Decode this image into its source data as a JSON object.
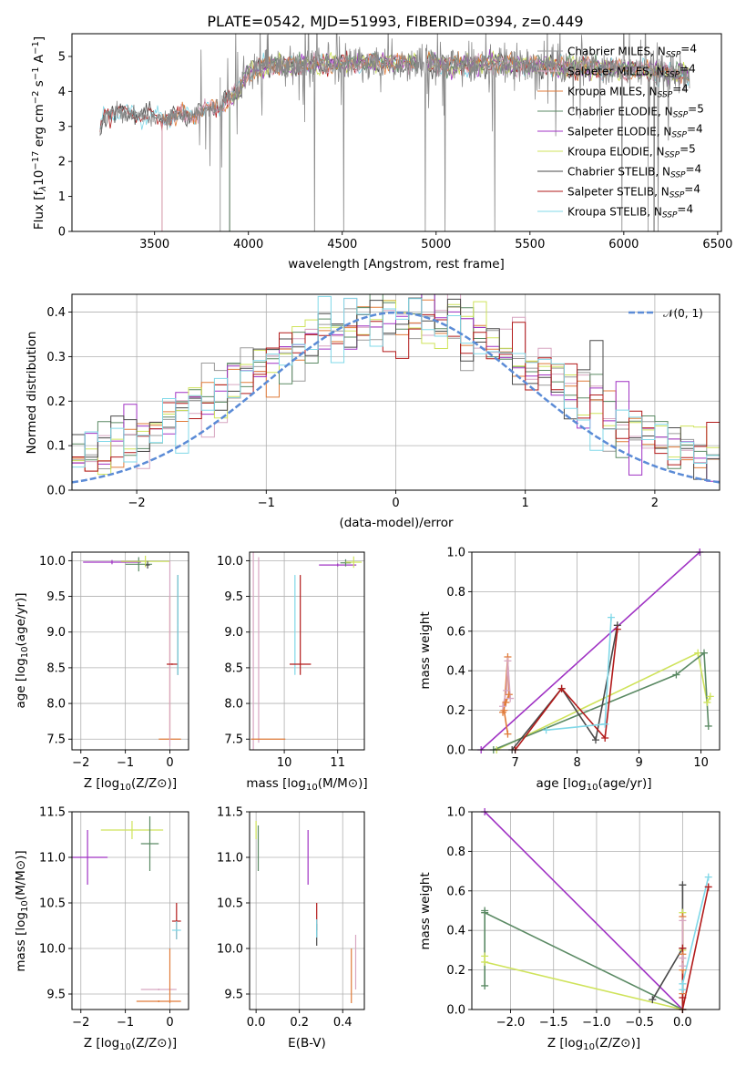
{
  "title": "PLATE=0542, MJD=51993, FIBERID=0394, z=0.449",
  "colors": {
    "Chabrier MILES": "#9a9a9a",
    "Salpeter MILES": "#d7a6c1",
    "Kroupa MILES": "#e07b39",
    "Chabrier ELODIE": "#5b8a64",
    "Salpeter ELODIE": "#a033c4",
    "Kroupa ELODIE": "#cfe35b",
    "Chabrier STELIB": "#4a4a4a",
    "Salpeter STELIB": "#b21a1a",
    "Kroupa STELIB": "#80d8e8",
    "normal": "#5b8bd6"
  },
  "chart_data": [
    {
      "id": "spectrum",
      "type": "line",
      "title": "PLATE=0542, MJD=51993, FIBERID=0394, z=0.449",
      "xlabel": "wavelength [Angstrom, rest frame]",
      "ylabel_parts": [
        "Flux [f",
        "λ",
        "10",
        "−17",
        " erg cm",
        "−2",
        " s",
        "−1",
        " A",
        "−1",
        "]"
      ],
      "xlim": [
        3060,
        6520
      ],
      "ylim": [
        0,
        5.65
      ],
      "xticks": [
        3500,
        4000,
        4500,
        5000,
        5500,
        6000,
        6500
      ],
      "yticks": [
        0,
        1,
        2,
        3,
        4,
        5
      ],
      "legend_position": "upper-right",
      "legend": [
        {
          "series": "Chabrier MILES",
          "label": "Chabrier MILES, N",
          "sub": "SSP",
          "suffix": "=4"
        },
        {
          "series": "Salpeter MILES",
          "label": "Salpeter MILES, N",
          "sub": "SSP",
          "suffix": "=4"
        },
        {
          "series": "Kroupa MILES",
          "label": "Kroupa MILES, N",
          "sub": "SSP",
          "suffix": "=4"
        },
        {
          "series": "Chabrier ELODIE",
          "label": "Chabrier ELODIE, N",
          "sub": "SSP",
          "suffix": "=5"
        },
        {
          "series": "Salpeter ELODIE",
          "label": "Salpeter ELODIE, N",
          "sub": "SSP",
          "suffix": "=4"
        },
        {
          "series": "Kroupa ELODIE",
          "label": "Kroupa ELODIE, N",
          "sub": "SSP",
          "suffix": "=5"
        },
        {
          "series": "Chabrier STELIB",
          "label": "Chabrier STELIB, N",
          "sub": "SSP",
          "suffix": "=4"
        },
        {
          "series": "Salpeter STELIB",
          "label": "Salpeter STELIB, N",
          "sub": "SSP",
          "suffix": "=4"
        },
        {
          "series": "Kroupa STELIB",
          "label": "Kroupa STELIB, N",
          "sub": "SSP",
          "suffix": "=4"
        }
      ],
      "data_range": [
        3210,
        6350
      ],
      "continuum": {
        "x": [
          3210,
          3230,
          3270,
          3350,
          3450,
          3550,
          3650,
          3750,
          3850,
          3950,
          4000,
          4100,
          4300,
          4500,
          4700,
          4900,
          5100,
          5300,
          5500,
          5700,
          5900,
          6100,
          6300,
          6350
        ],
        "y": [
          2.8,
          3.35,
          3.45,
          3.4,
          3.3,
          3.25,
          3.3,
          3.4,
          3.6,
          4.0,
          4.55,
          4.75,
          4.75,
          4.8,
          4.85,
          4.8,
          4.75,
          4.8,
          4.75,
          4.7,
          4.65,
          4.6,
          4.5,
          4.45
        ]
      },
      "model_cutoffs": {
        "Chabrier MILES": 3540,
        "Salpeter MILES": 3540,
        "Kroupa MILES": 3540,
        "Chabrier ELODIE": 3900,
        "Salpeter ELODIE": 3900,
        "Kroupa ELODIE": 3900,
        "Chabrier STELIB": 3210,
        "Salpeter STELIB": 3210,
        "Kroupa STELIB": 3210
      },
      "model_gap": [
        4900,
        4945
      ]
    },
    {
      "id": "residuals",
      "type": "histogram",
      "xlabel": "(data-model)/error",
      "ylabel": "Normed distribution",
      "xlim": [
        -2.5,
        2.5
      ],
      "ylim": [
        0,
        0.44
      ],
      "xticks": [
        -2,
        -1,
        0,
        1,
        2
      ],
      "yticks": [
        0.0,
        0.1,
        0.2,
        0.3,
        0.4
      ],
      "bins": 50,
      "legend": [
        {
          "label": "𝒩(0, 1)",
          "series": "normal",
          "style": "dashed"
        }
      ],
      "legend_position": "upper-right"
    },
    {
      "id": "age-vs-Z",
      "type": "errorbar",
      "xlabel": "Z [log10(Z/Z⊙)]",
      "ylabel": "age  [log10(age/yr)]",
      "xlim": [
        -2.2,
        0.42
      ],
      "ylim": [
        7.35,
        10.12
      ],
      "xticks": [
        -2,
        -1,
        0
      ],
      "yticks": [
        7.5,
        8.0,
        8.5,
        9.0,
        9.5,
        10.0
      ],
      "points": [
        {
          "series": "Salpeter ELODIE",
          "x": -1.3,
          "y": 9.98,
          "xerr": 0.65,
          "yerr": 0.03
        },
        {
          "series": "Chabrier ELODIE",
          "x": -0.7,
          "y": 9.95,
          "xerr": 0.3,
          "yerr": 0.1
        },
        {
          "series": "Kroupa ELODIE",
          "x": -0.55,
          "y": 9.99,
          "xerr": 0.55,
          "yerr": 0.08
        },
        {
          "series": "Chabrier STELIB",
          "x": -0.5,
          "y": 9.94,
          "xerr": 0.05,
          "yerr": 0.05
        },
        {
          "series": "Kroupa MILES",
          "x": 0.0,
          "y": 8.5,
          "xerr": 0.01,
          "yerr": 1.0
        },
        {
          "series": "Kroupa MILES",
          "x": 0.0,
          "y": 7.5,
          "xerr": 0.25,
          "yerr": 0.01
        },
        {
          "series": "Salpeter MILES",
          "x": 0.0,
          "y": 8.7,
          "xerr": 0.01,
          "yerr": 1.3
        },
        {
          "series": "Salpeter STELIB",
          "x": 0.05,
          "y": 8.55,
          "xerr": 0.12,
          "yerr": 0.01
        },
        {
          "series": "Chabrier STELIB",
          "x": 0.18,
          "y": 9.1,
          "xerr": 0.01,
          "yerr": 0.7
        },
        {
          "series": "Kroupa STELIB",
          "x": 0.18,
          "y": 9.1,
          "xerr": 0.01,
          "yerr": 0.7
        }
      ]
    },
    {
      "id": "age-vs-mass",
      "type": "errorbar",
      "xlabel": "mass [log10(M/M⊙)]",
      "xlim": [
        9.35,
        11.5
      ],
      "ylim": [
        7.35,
        10.12
      ],
      "xticks": [
        10,
        11
      ],
      "yticks": [
        7.5,
        8.0,
        8.5,
        9.0,
        9.5,
        10.0
      ],
      "points": [
        {
          "series": "Salpeter MILES",
          "x": 9.42,
          "y": 8.75,
          "xerr": 0.0,
          "yerr": 1.4
        },
        {
          "series": "Salpeter MILES",
          "x": 9.52,
          "y": 8.75,
          "xerr": 0.0,
          "yerr": 1.3
        },
        {
          "series": "Kroupa MILES",
          "x": 9.7,
          "y": 7.5,
          "xerr": 0.32,
          "yerr": 0.0
        },
        {
          "series": "Kroupa STELIB",
          "x": 10.2,
          "y": 9.1,
          "xerr": 0.0,
          "yerr": 0.7
        },
        {
          "series": "Salpeter STELIB",
          "x": 10.3,
          "y": 9.1,
          "xerr": 0.0,
          "yerr": 0.7
        },
        {
          "series": "Salpeter STELIB",
          "x": 10.3,
          "y": 8.55,
          "xerr": 0.2,
          "yerr": 0.0
        },
        {
          "series": "Salpeter ELODIE",
          "x": 11.0,
          "y": 9.94,
          "xerr": 0.35,
          "yerr": 0.02
        },
        {
          "series": "Chabrier ELODIE",
          "x": 11.15,
          "y": 9.97,
          "xerr": 0.1,
          "yerr": 0.05
        },
        {
          "series": "Kroupa ELODIE",
          "x": 11.3,
          "y": 9.98,
          "xerr": 0.15,
          "yerr": 0.08
        }
      ]
    },
    {
      "id": "massweight-vs-age",
      "type": "line",
      "xlabel": "age  [log10(age/yr)]",
      "ylabel": "mass weight",
      "xlim": [
        6.3,
        10.3
      ],
      "ylim": [
        0,
        1.0
      ],
      "xticks": [
        7,
        8,
        9,
        10
      ],
      "yticks": [
        0.0,
        0.2,
        0.4,
        0.6,
        0.8,
        1.0
      ],
      "series": [
        {
          "name": "Salpeter ELODIE",
          "x": [
            6.45,
            9.98
          ],
          "y": [
            0.0,
            1.0
          ]
        },
        {
          "name": "Kroupa MILES",
          "x": [
            6.8,
            6.85,
            6.9,
            6.88,
            6.82,
            6.88
          ],
          "y": [
            0.19,
            0.24,
            0.28,
            0.47,
            0.2,
            0.08
          ]
        },
        {
          "name": "Salpeter MILES",
          "x": [
            6.8,
            6.86,
            6.88,
            6.92
          ],
          "y": [
            0.22,
            0.3,
            0.45,
            0.26
          ]
        },
        {
          "name": "Kroupa ELODIE",
          "x": [
            6.7,
            9.95,
            10.1,
            10.15
          ],
          "y": [
            0.0,
            0.49,
            0.24,
            0.27
          ]
        },
        {
          "name": "Chabrier ELODIE",
          "x": [
            6.65,
            9.6,
            10.05,
            10.12
          ],
          "y": [
            0.0,
            0.38,
            0.49,
            0.12
          ]
        },
        {
          "name": "Chabrier STELIB",
          "x": [
            6.95,
            7.75,
            8.3,
            8.65
          ],
          "y": [
            0.0,
            0.31,
            0.05,
            0.63
          ]
        },
        {
          "name": "Salpeter STELIB",
          "x": [
            7.0,
            7.75,
            8.45,
            8.65
          ],
          "y": [
            0.0,
            0.31,
            0.06,
            0.61
          ]
        },
        {
          "name": "Kroupa STELIB",
          "x": [
            7.5,
            8.45,
            8.55
          ],
          "y": [
            0.1,
            0.13,
            0.67
          ]
        }
      ]
    },
    {
      "id": "mass-vs-Z",
      "type": "errorbar",
      "xlabel": "Z [log10(Z/Z⊙)]",
      "ylabel": "mass [log10(M/M⊙)]",
      "xlim": [
        -2.2,
        0.42
      ],
      "ylim": [
        9.33,
        11.5
      ],
      "xticks": [
        -2,
        -1,
        0
      ],
      "yticks": [
        9.5,
        10.0,
        10.5,
        11.0,
        11.5
      ],
      "points": [
        {
          "series": "Salpeter ELODIE",
          "x": -1.85,
          "y": 11.0,
          "xerr": 0.45,
          "yerr": 0.3
        },
        {
          "series": "Kroupa ELODIE",
          "x": -0.85,
          "y": 11.3,
          "xerr": 0.7,
          "yerr": 0.1
        },
        {
          "series": "Chabrier ELODIE",
          "x": -0.45,
          "y": 11.15,
          "xerr": 0.2,
          "yerr": 0.3
        },
        {
          "series": "Salpeter STELIB",
          "x": 0.15,
          "y": 10.3,
          "xerr": 0.1,
          "yerr": 0.2
        },
        {
          "series": "Kroupa STELIB",
          "x": 0.15,
          "y": 10.2,
          "xerr": 0.1,
          "yerr": 0.1
        },
        {
          "series": "Salpeter MILES",
          "x": -0.25,
          "y": 9.55,
          "xerr": 0.4,
          "yerr": 0.01
        },
        {
          "series": "Kroupa MILES",
          "x": -0.25,
          "y": 9.42,
          "xerr": 0.5,
          "yerr": 0.01
        },
        {
          "series": "Kroupa MILES",
          "x": 0.0,
          "y": 9.7,
          "xerr": 0.01,
          "yerr": 0.3
        }
      ]
    },
    {
      "id": "mass-vs-ebv",
      "type": "errorbar",
      "xlabel": "E(B-V)",
      "xlim": [
        -0.03,
        0.5
      ],
      "ylim": [
        9.33,
        11.5
      ],
      "xticks": [
        0.0,
        0.2,
        0.4
      ],
      "yticks": [
        9.5,
        10.0,
        10.5,
        11.0,
        11.5
      ],
      "points": [
        {
          "series": "Kroupa ELODIE",
          "x": 0.0,
          "y": 11.3,
          "xerr": 0.0,
          "yerr": 0.1
        },
        {
          "series": "Chabrier ELODIE",
          "x": 0.01,
          "y": 11.1,
          "xerr": 0.0,
          "yerr": 0.25
        },
        {
          "series": "Salpeter ELODIE",
          "x": 0.24,
          "y": 11.0,
          "xerr": 0.0,
          "yerr": 0.3
        },
        {
          "series": "Salpeter STELIB",
          "x": 0.28,
          "y": 10.35,
          "xerr": 0.0,
          "yerr": 0.15
        },
        {
          "series": "Chabrier STELIB",
          "x": 0.28,
          "y": 10.15,
          "xerr": 0.0,
          "yerr": 0.12
        },
        {
          "series": "Kroupa STELIB",
          "x": 0.28,
          "y": 10.22,
          "xerr": 0.0,
          "yerr": 0.1
        },
        {
          "series": "Kroupa MILES",
          "x": 0.44,
          "y": 9.7,
          "xerr": 0.0,
          "yerr": 0.3
        },
        {
          "series": "Salpeter MILES",
          "x": 0.46,
          "y": 9.85,
          "xerr": 0.0,
          "yerr": 0.3
        }
      ]
    },
    {
      "id": "massweight-vs-Z",
      "type": "line",
      "xlabel": "Z [log10(Z/Z⊙)]",
      "ylabel": "mass weight",
      "xlim": [
        -2.45,
        0.43
      ],
      "ylim": [
        0,
        1.0
      ],
      "xticks": [
        -2.0,
        -1.5,
        -1.0,
        -0.5,
        0.0
      ],
      "yticks": [
        0.0,
        0.2,
        0.4,
        0.6,
        0.8,
        1.0
      ],
      "series": [
        {
          "name": "Salpeter ELODIE",
          "x": [
            -2.3,
            0.0
          ],
          "y": [
            1.0,
            0.0
          ]
        },
        {
          "name": "Chabrier ELODIE",
          "x": [
            -2.3,
            -2.3,
            -2.3,
            0.0
          ],
          "y": [
            0.12,
            0.5,
            0.49,
            0.0
          ]
        },
        {
          "name": "Kroupa ELODIE",
          "x": [
            -2.3,
            -2.3,
            0.0,
            0.0,
            0.0
          ],
          "y": [
            0.27,
            0.24,
            0.0,
            0.49,
            0.3
          ]
        },
        {
          "name": "Chabrier STELIB",
          "x": [
            -0.35,
            0.0,
            0.0,
            0.0
          ],
          "y": [
            0.05,
            0.31,
            0.0,
            0.63
          ]
        },
        {
          "name": "Kroupa MILES",
          "x": [
            0.0,
            0.0,
            0.0,
            0.0
          ],
          "y": [
            0.08,
            0.28,
            0.47,
            0.2
          ]
        },
        {
          "name": "Salpeter MILES",
          "x": [
            0.0,
            0.0,
            0.0
          ],
          "y": [
            0.22,
            0.45,
            0.26
          ]
        },
        {
          "name": "Salpeter STELIB",
          "x": [
            0.0,
            0.0,
            0.0,
            0.3
          ],
          "y": [
            0.06,
            0.31,
            0.0,
            0.62
          ]
        },
        {
          "name": "Kroupa STELIB",
          "x": [
            0.0,
            0.0,
            0.3
          ],
          "y": [
            0.1,
            0.13,
            0.67
          ]
        }
      ]
    }
  ]
}
